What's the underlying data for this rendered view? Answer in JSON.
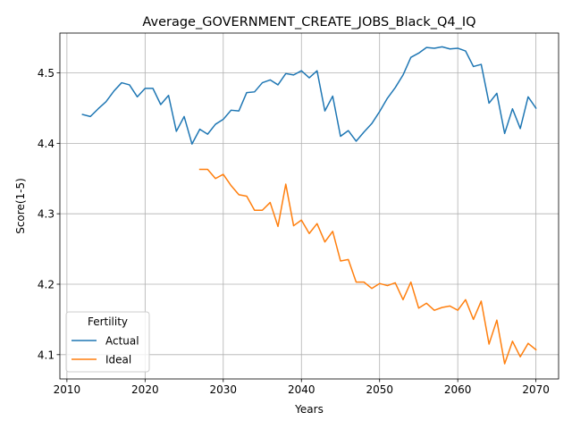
{
  "chart_data": {
    "type": "line",
    "title": "Average_GOVERNMENT_CREATE_JOBS_Black_Q4_IQ",
    "xlabel": "Years",
    "ylabel": "Score(1-5)",
    "xlim": [
      2009.1,
      2072.9
    ],
    "ylim": [
      4.0655,
      4.5565
    ],
    "xticks": [
      2010,
      2020,
      2030,
      2040,
      2050,
      2060,
      2070
    ],
    "yticks": [
      4.1,
      4.2,
      4.3,
      4.4,
      4.5
    ],
    "xtick_labels": [
      "2010",
      "2020",
      "2030",
      "2040",
      "2050",
      "2060",
      "2070"
    ],
    "ytick_labels": [
      "4.1",
      "4.2",
      "4.3",
      "4.4",
      "4.5"
    ],
    "grid": true,
    "legend": {
      "title": "Fertility",
      "position": "lower left"
    },
    "series": [
      {
        "name": "Actual",
        "color": "#1f77b4",
        "x": [
          2012,
          2013,
          2014,
          2015,
          2016,
          2017,
          2018,
          2019,
          2020,
          2021,
          2022,
          2023,
          2024,
          2025,
          2026,
          2027,
          2028,
          2029,
          2030,
          2031,
          2032,
          2033,
          2034,
          2035,
          2036,
          2037,
          2038,
          2039,
          2040,
          2041,
          2042,
          2043,
          2044,
          2045,
          2046,
          2047,
          2048,
          2049,
          2050,
          2051,
          2052,
          2053,
          2054,
          2055,
          2056,
          2057,
          2058,
          2059,
          2060,
          2061,
          2062,
          2063,
          2064,
          2065,
          2066,
          2067,
          2068,
          2069,
          2070
        ],
        "values": [
          4.441,
          4.438,
          4.449,
          4.459,
          4.474,
          4.486,
          4.483,
          4.466,
          4.478,
          4.478,
          4.455,
          4.468,
          4.417,
          4.438,
          4.399,
          4.42,
          4.413,
          4.427,
          4.434,
          4.447,
          4.446,
          4.472,
          4.473,
          4.486,
          4.49,
          4.483,
          4.499,
          4.497,
          4.503,
          4.493,
          4.503,
          4.446,
          4.467,
          4.41,
          4.418,
          4.403,
          4.416,
          4.428,
          4.445,
          4.464,
          4.479,
          4.497,
          4.522,
          4.528,
          4.536,
          4.535,
          4.537,
          4.534,
          4.535,
          4.531,
          4.509,
          4.512,
          4.457,
          4.471,
          4.414,
          4.449,
          4.421,
          4.466,
          4.45
        ]
      },
      {
        "name": "Ideal",
        "color": "#ff7f0e",
        "x": [
          2027,
          2028,
          2029,
          2030,
          2031,
          2032,
          2033,
          2034,
          2035,
          2036,
          2037,
          2038,
          2039,
          2040,
          2041,
          2042,
          2043,
          2044,
          2045,
          2046,
          2047,
          2048,
          2049,
          2050,
          2051,
          2052,
          2053,
          2054,
          2055,
          2056,
          2057,
          2058,
          2059,
          2060,
          2061,
          2062,
          2063,
          2064,
          2065,
          2066,
          2067,
          2068,
          2069,
          2070
        ],
        "values": [
          4.363,
          4.363,
          4.35,
          4.356,
          4.34,
          4.327,
          4.325,
          4.305,
          4.305,
          4.316,
          4.282,
          4.342,
          4.283,
          4.291,
          4.272,
          4.286,
          4.26,
          4.275,
          4.233,
          4.235,
          4.203,
          4.203,
          4.194,
          4.201,
          4.198,
          4.202,
          4.178,
          4.203,
          4.166,
          4.173,
          4.163,
          4.167,
          4.169,
          4.163,
          4.178,
          4.15,
          4.176,
          4.115,
          4.149,
          4.087,
          4.119,
          4.097,
          4.116,
          4.107
        ]
      }
    ]
  }
}
